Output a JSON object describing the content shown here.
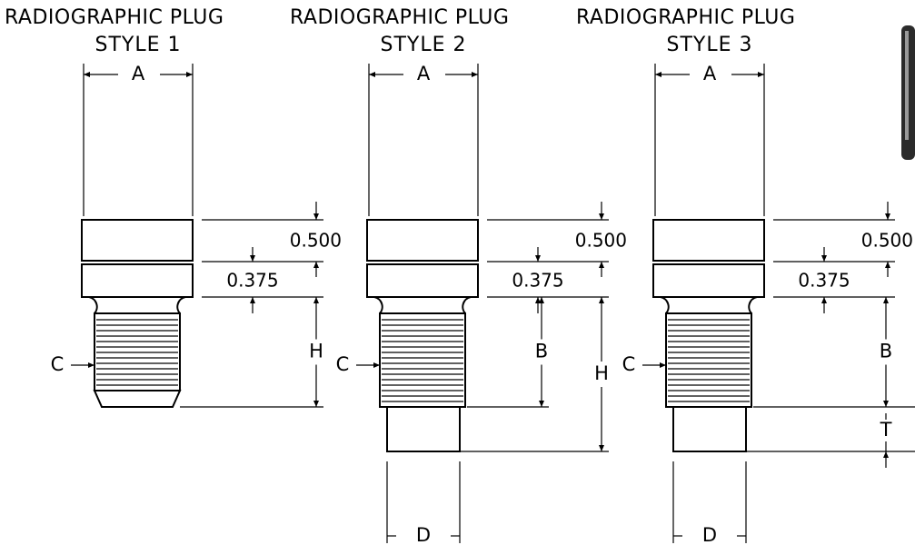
{
  "plugs": [
    {
      "title": "RADIOGRAPHIC PLUG",
      "style": "STYLE 1",
      "a": "A",
      "c": "C",
      "top": "0.500",
      "groove": "0.375",
      "h": "H"
    },
    {
      "title": "RADIOGRAPHIC PLUG",
      "style": "STYLE 2",
      "a": "A",
      "c": "C",
      "top": "0.500",
      "groove": "0.375",
      "b": "B",
      "h": "H",
      "d": "D"
    },
    {
      "title": "RADIOGRAPHIC PLUG",
      "style": "STYLE 3",
      "a": "A",
      "c": "C",
      "top": "0.500",
      "groove": "0.375",
      "b": "B",
      "t": "T",
      "d": "D"
    }
  ]
}
